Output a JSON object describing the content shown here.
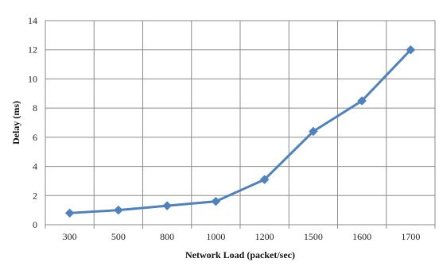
{
  "chart_data": {
    "type": "line",
    "title": "",
    "xlabel": "Network Load (packet/sec)",
    "ylabel": "Delay (ms)",
    "categories": [
      "300",
      "500",
      "800",
      "1000",
      "1200",
      "1500",
      "1600",
      "1700"
    ],
    "ylim": [
      0,
      14
    ],
    "yticks": [
      0,
      2,
      4,
      6,
      8,
      10,
      12,
      14
    ],
    "grid": true,
    "legend": "none",
    "series": [
      {
        "values": [
          0.8,
          1.0,
          1.3,
          1.6,
          3.1,
          6.4,
          8.5,
          12.0
        ],
        "color": "#4f81bd",
        "marker": "diamond"
      }
    ]
  }
}
